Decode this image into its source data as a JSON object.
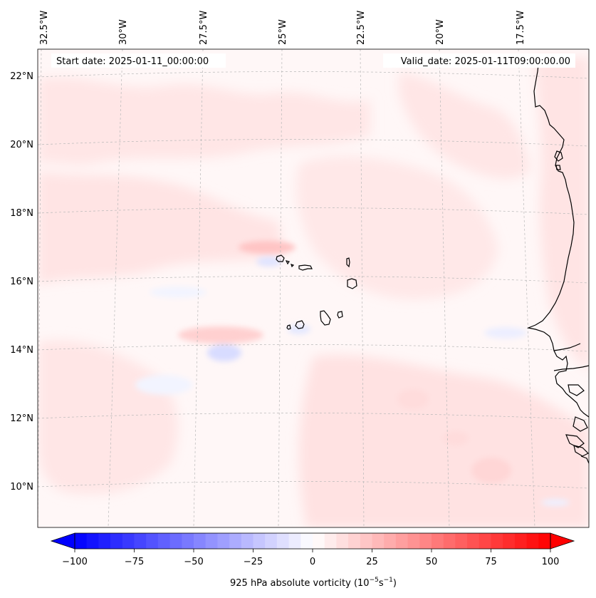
{
  "map": {
    "longitudes": [
      "32.5°W",
      "30°W",
      "27.5°W",
      "25°W",
      "22.5°W",
      "20°W",
      "17.5°W"
    ],
    "latitudes": [
      "22°N",
      "20°N",
      "18°N",
      "16°N",
      "14°N",
      "12°N",
      "10°N"
    ],
    "start_date": "Start date: 2025-01-11_00:00:00",
    "valid_date": "Valid_date: 2025-01-11T09:00:00.00"
  },
  "colorbar": {
    "ticks": [
      "−100",
      "−75",
      "−50",
      "−25",
      "0",
      "25",
      "50",
      "75",
      "100"
    ],
    "label_main": "925 hPa absolute vorticity (10",
    "label_exp1": "−5",
    "label_unit": "s",
    "label_exp2": "−1",
    "label_end": ")",
    "vmin": -100,
    "vmax": 100,
    "cmap": "bwr",
    "low_color": "#0000ff",
    "mid_color": "#ffffff",
    "high_color": "#ff0000"
  },
  "colors": {
    "land_outline": "#000000",
    "gridline": "#b0b0b0",
    "light_red": "#ffe8e8",
    "lighter_red": "#fff4f4",
    "light_blue": "#eef0ff"
  }
}
